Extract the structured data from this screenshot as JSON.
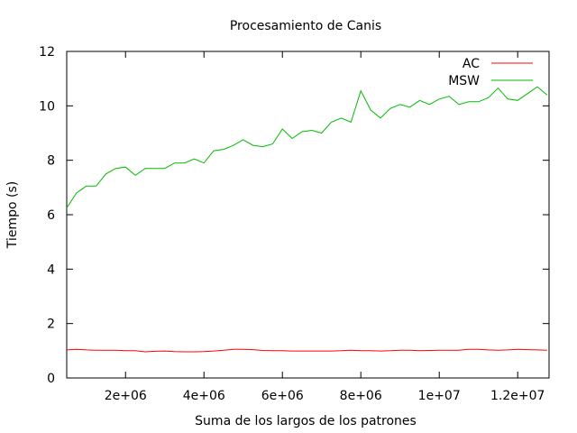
{
  "chart_data": {
    "type": "line",
    "title": "Procesamiento de Canis",
    "xlabel": "Suma de los largos de los patrones",
    "ylabel": "Tiempo (s)",
    "xlim": [
      500000,
      12800000
    ],
    "ylim": [
      0,
      12
    ],
    "x_ticks": [
      2000000,
      4000000,
      6000000,
      8000000,
      10000000,
      12000000
    ],
    "x_tick_labels": [
      "2e+06",
      "4e+06",
      "6e+06",
      "8e+06",
      "1e+07",
      "1.2e+07"
    ],
    "y_ticks": [
      0,
      2,
      4,
      6,
      8,
      10,
      12
    ],
    "y_tick_labels": [
      "0",
      "2",
      "4",
      "6",
      "8",
      "10",
      "12"
    ],
    "grid": false,
    "legend_position": "top-right",
    "x": [
      500000,
      750000,
      1000000,
      1250000,
      1500000,
      1750000,
      2000000,
      2250000,
      2500000,
      2750000,
      3000000,
      3250000,
      3500000,
      3750000,
      4000000,
      4250000,
      4500000,
      4750000,
      5000000,
      5250000,
      5500000,
      5750000,
      6000000,
      6250000,
      6500000,
      6750000,
      7000000,
      7250000,
      7500000,
      7750000,
      8000000,
      8250000,
      8500000,
      8750000,
      9000000,
      9250000,
      9500000,
      9750000,
      10000000,
      10250000,
      10500000,
      10750000,
      11000000,
      11250000,
      11500000,
      11750000,
      12000000,
      12250000,
      12500000,
      12750000
    ],
    "series": [
      {
        "name": "AC",
        "color": "#ff0000",
        "values": [
          1.03,
          1.05,
          1.03,
          1.02,
          1.02,
          1.02,
          1.0,
          1.0,
          0.96,
          0.98,
          0.99,
          0.97,
          0.96,
          0.96,
          0.97,
          0.99,
          1.02,
          1.05,
          1.05,
          1.04,
          1.01,
          1.0,
          1.0,
          0.99,
          0.99,
          0.99,
          0.99,
          0.99,
          1.0,
          1.02,
          1.0,
          1.0,
          0.99,
          1.0,
          1.02,
          1.02,
          1.0,
          1.01,
          1.02,
          1.02,
          1.02,
          1.05,
          1.05,
          1.03,
          1.02,
          1.03,
          1.05,
          1.04,
          1.03,
          1.02
        ]
      },
      {
        "name": "MSW",
        "color": "#00bb00",
        "values": [
          6.25,
          6.8,
          7.05,
          7.05,
          7.5,
          7.7,
          7.75,
          7.45,
          7.7,
          7.7,
          7.7,
          7.9,
          7.9,
          8.05,
          7.9,
          8.35,
          8.4,
          8.55,
          8.75,
          8.55,
          8.5,
          8.6,
          9.15,
          8.8,
          9.05,
          9.1,
          9.0,
          9.4,
          9.55,
          9.4,
          10.55,
          9.85,
          9.55,
          9.9,
          10.05,
          9.95,
          10.2,
          10.05,
          10.25,
          10.35,
          10.05,
          10.15,
          10.15,
          10.3,
          10.65,
          10.25,
          10.2,
          10.45,
          10.7,
          10.4
        ]
      }
    ]
  }
}
